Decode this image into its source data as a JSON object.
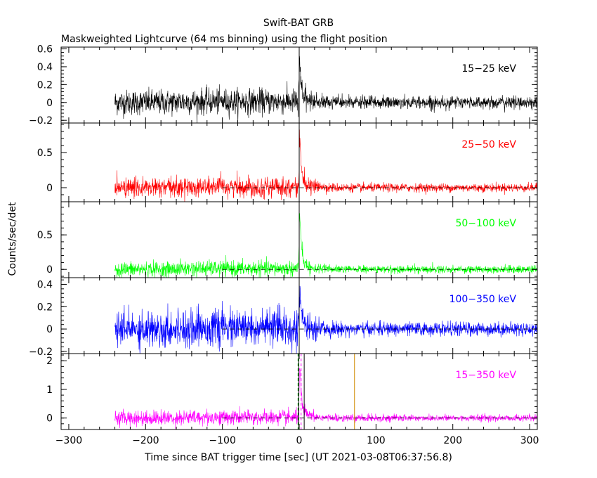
{
  "chart_data": {
    "type": "line",
    "title": "Swift-BAT GRB",
    "subtitle": "Maskweighted Lightcurve (64 ms binning) using the flight position",
    "xlabel": "Time since BAT trigger time [sec] (UT 2021-03-08T06:37:56.8)",
    "ylabel": "Counts/sec/det",
    "xlim": [
      -310,
      310
    ],
    "x_ticks": [
      -300,
      -200,
      -100,
      0,
      100,
      200,
      300
    ],
    "data_start": -240,
    "data_end": 310,
    "trigger_time": 0,
    "panels": [
      {
        "name": "15-25 keV",
        "label": "15−25 keV",
        "color": "#000000",
        "ylim": [
          -0.23,
          0.62
        ],
        "yticks": [
          "0.6",
          "0.4",
          "0.2",
          "0",
          "−0.2"
        ],
        "ytick_values": [
          0.6,
          0.4,
          0.2,
          0,
          -0.2
        ],
        "noise_pre": 0.07,
        "noise_post": 0.035,
        "peak": 0.52,
        "zero_line": false
      },
      {
        "name": "25-50 keV",
        "label": "25−50 keV",
        "color": "#ff0000",
        "ylim": [
          -0.2,
          0.92
        ],
        "yticks": [
          "0.5",
          "0"
        ],
        "ytick_values": [
          0.5,
          0
        ],
        "noise_pre": 0.07,
        "noise_post": 0.03,
        "peak": 0.86,
        "zero_line": true
      },
      {
        "name": "50-100 keV",
        "label": "50−100 keV",
        "color": "#00ff00",
        "ylim": [
          -0.12,
          0.98
        ],
        "yticks": [
          "0.5",
          "0"
        ],
        "ytick_values": [
          0.5,
          0
        ],
        "noise_pre": 0.055,
        "noise_post": 0.028,
        "peak": 0.96,
        "zero_line": true
      },
      {
        "name": "100-350 keV",
        "label": "100−350 keV",
        "color": "#0000ff",
        "ylim": [
          -0.22,
          0.46
        ],
        "yticks": [
          "0.4",
          "0.2",
          "0",
          "−0.2"
        ],
        "ytick_values": [
          0.4,
          0.2,
          0,
          -0.2
        ],
        "noise_pre": 0.08,
        "noise_post": 0.03,
        "peak": 0.42,
        "zero_line": true
      },
      {
        "name": "15-350 keV",
        "label": "15−350 keV",
        "color": "#ff00ff",
        "ylim": [
          -0.4,
          2.25
        ],
        "yticks": [
          "2",
          "1",
          "0"
        ],
        "ytick_values": [
          2,
          1,
          0
        ],
        "noise_pre": 0.13,
        "noise_post": 0.06,
        "peak": 2.1,
        "zero_line": true
      }
    ],
    "markers": [
      {
        "name": "t-start",
        "x": -1.5,
        "color": "#00aa00",
        "style": "dashed"
      },
      {
        "name": "t-end",
        "x": 2.5,
        "color": "#ff00ff",
        "style": "dashed"
      },
      {
        "name": "t-peak-start",
        "x": -0.5,
        "color": "#000000",
        "style": "solid"
      },
      {
        "name": "t-peak-end",
        "x": 6.5,
        "color": "#000000",
        "style": "solid"
      },
      {
        "name": "orange-marker",
        "x": 72,
        "color": "#d08a00",
        "style": "solid"
      }
    ]
  }
}
